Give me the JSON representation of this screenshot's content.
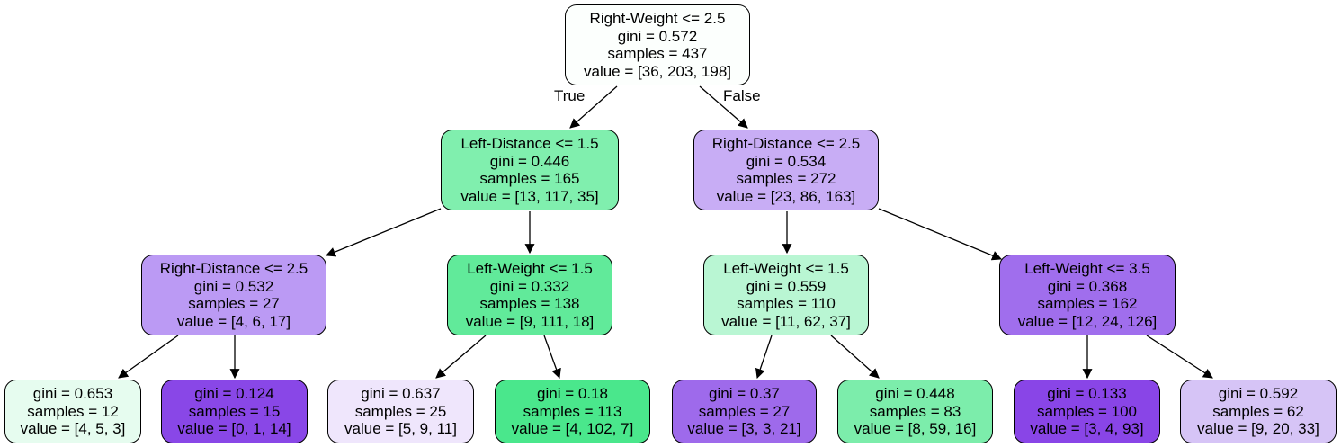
{
  "edge_labels": {
    "true_label": "True",
    "false_label": "False"
  },
  "nodes": [
    {
      "id": "n0",
      "split": "Right-Weight <= 2.5",
      "gini": "gini = 0.572",
      "samples": "samples = 437",
      "value": "value = [36, 203, 198]",
      "fill": "#fcfffd"
    },
    {
      "id": "n1",
      "split": "Left-Distance <= 1.5",
      "gini": "gini = 0.446",
      "samples": "samples = 165",
      "value": "value = [13, 117, 35]",
      "fill": "#80efae"
    },
    {
      "id": "n2",
      "split": "Right-Distance <= 2.5",
      "gini": "gini = 0.534",
      "samples": "samples = 272",
      "value": "value = [23, 86, 163]",
      "fill": "#c8adf5"
    },
    {
      "id": "n3",
      "split": "Right-Distance <= 2.5",
      "gini": "gini = 0.532",
      "samples": "samples = 27",
      "value": "value = [4, 6, 17]",
      "fill": "#bb9af4"
    },
    {
      "id": "n4",
      "split": "Left-Weight <= 1.5",
      "gini": "gini = 0.332",
      "samples": "samples = 138",
      "value": "value = [9, 111, 18]",
      "fill": "#61ea9a"
    },
    {
      "id": "n5",
      "split": "Left-Weight <= 1.5",
      "gini": "gini = 0.559",
      "samples": "samples = 110",
      "value": "value = [11, 62, 37]",
      "fill": "#b9f6d3"
    },
    {
      "id": "n6",
      "split": "Left-Weight <= 3.5",
      "gini": "gini = 0.368",
      "samples": "samples = 162",
      "value": "value = [12, 24, 126]",
      "fill": "#a06eed"
    },
    {
      "id": "n7",
      "split": "",
      "gini": "gini = 0.653",
      "samples": "samples = 12",
      "value": "value = [4, 5, 3]",
      "fill": "#e6fcef"
    },
    {
      "id": "n8",
      "split": "",
      "gini": "gini = 0.124",
      "samples": "samples = 15",
      "value": "value = [0, 1, 14]",
      "fill": "#8947e7"
    },
    {
      "id": "n9",
      "split": "",
      "gini": "gini = 0.637",
      "samples": "samples = 25",
      "value": "value = [5, 9, 11]",
      "fill": "#efe6fc"
    },
    {
      "id": "n10",
      "split": "",
      "gini": "gini = 0.18",
      "samples": "samples = 113",
      "value": "value = [4, 102, 7]",
      "fill": "#4ae78c"
    },
    {
      "id": "n11",
      "split": "",
      "gini": "gini = 0.37",
      "samples": "samples = 27",
      "value": "value = [3, 3, 21]",
      "fill": "#9e6aeb"
    },
    {
      "id": "n12",
      "split": "",
      "gini": "gini = 0.448",
      "samples": "samples = 83",
      "value": "value = [8, 59, 16]",
      "fill": "#7cedab"
    },
    {
      "id": "n13",
      "split": "",
      "gini": "gini = 0.133",
      "samples": "samples = 100",
      "value": "value = [3, 4, 93]",
      "fill": "#8945e7"
    },
    {
      "id": "n14",
      "split": "",
      "gini": "gini = 0.592",
      "samples": "samples = 62",
      "value": "value = [9, 20, 33]",
      "fill": "#d6c4f6"
    }
  ]
}
